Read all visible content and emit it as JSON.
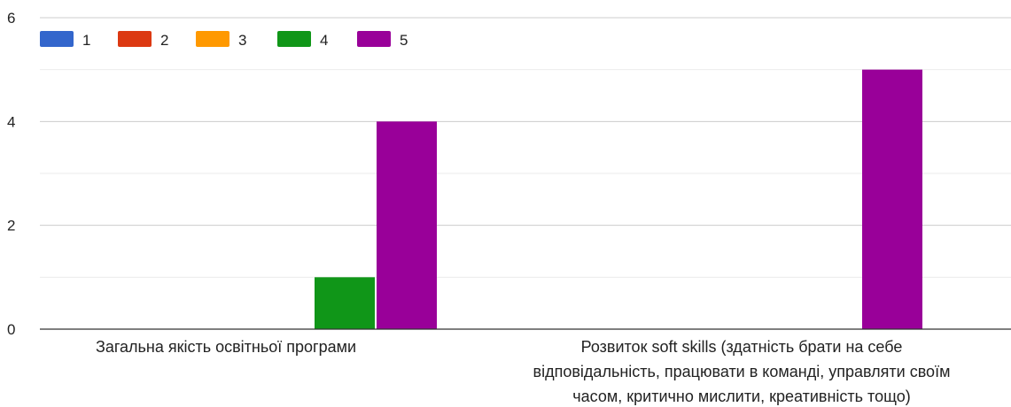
{
  "chart_data": {
    "type": "bar",
    "title": "",
    "xlabel": "",
    "ylabel": "",
    "ylim": [
      0,
      6
    ],
    "yticks": [
      0,
      2,
      4,
      6
    ],
    "grid": true,
    "legend_position": "top-left",
    "categories": [
      [
        "Загальна якість освітньої програми"
      ],
      [
        "Розвиток soft skills (здатність брати на себе",
        "відповідальність, працювати в команді, управляти своїм",
        "часом, критично мислити, креативність тощо)"
      ]
    ],
    "series": [
      {
        "name": "1",
        "color": "#3366cc",
        "values": [
          0,
          0
        ]
      },
      {
        "name": "2",
        "color": "#dc3912",
        "values": [
          0,
          0
        ]
      },
      {
        "name": "3",
        "color": "#ff9900",
        "values": [
          0,
          0
        ]
      },
      {
        "name": "4",
        "color": "#109618",
        "values": [
          1,
          0
        ]
      },
      {
        "name": "5",
        "color": "#990099",
        "values": [
          4,
          5
        ]
      }
    ]
  }
}
